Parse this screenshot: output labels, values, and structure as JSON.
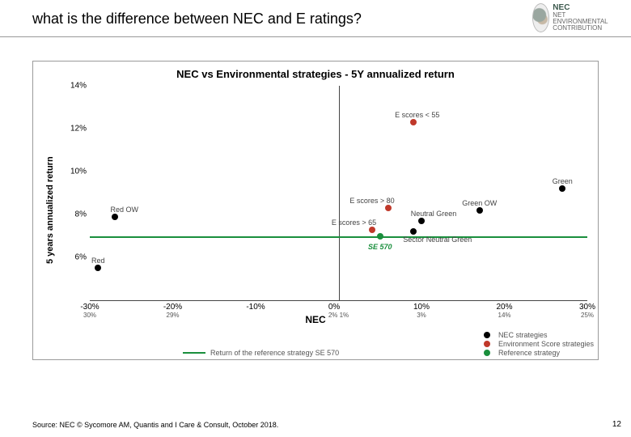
{
  "header": {
    "title": "what is the difference between NEC and E ratings?",
    "logo": {
      "name": "NEC",
      "tagline": "NET ENVIRONMENTAL CONTRIBUTION"
    }
  },
  "chart": {
    "type": "scatter",
    "title": "NEC vs Environmental strategies - 5Y annualized return",
    "x_label": "NEC",
    "y_label": "5 years annualized return",
    "xlim": [
      -30,
      30
    ],
    "ylim": [
      4,
      14
    ],
    "ytick_step": 2,
    "xticks": [
      {
        "v": -30,
        "label": "-30%",
        "sub": "30%"
      },
      {
        "v": -20,
        "label": "-20%",
        "sub": "29%"
      },
      {
        "v": -10,
        "label": "-10%",
        "sub": ""
      },
      {
        "v": 0,
        "label": "0%",
        "sub": "2%  1%"
      },
      {
        "v": 10,
        "label": "10%",
        "sub": "3%"
      },
      {
        "v": 20,
        "label": "20%",
        "sub": "14%"
      },
      {
        "v": 30,
        "label": "30%",
        "sub": "25%"
      }
    ],
    "axis_line_y": 4,
    "reference_return": 7.0,
    "colors": {
      "nec": "#000000",
      "escore": "#c0392b",
      "reference": "#1a8f3d",
      "axis": "#444444",
      "axis_light": "#e0e0e0",
      "ref_line": "#1a8f3d"
    },
    "series": {
      "nec": [
        {
          "x": -29,
          "y": 5.5,
          "label": "Red",
          "label_dx": 0,
          "label_dy": -14
        },
        {
          "x": -27,
          "y": 7.9,
          "label": "Red OW",
          "label_dx": 12,
          "label_dy": -14
        },
        {
          "x": 9,
          "y": 7.2,
          "label": "Sector Neutral Green",
          "label_dx": 30,
          "label_dy": 5
        },
        {
          "x": 10,
          "y": 7.7,
          "label": "Neutral Green",
          "label_dx": 15,
          "label_dy": -14
        },
        {
          "x": 17,
          "y": 8.2,
          "label": "Green OW",
          "label_dx": 0,
          "label_dy": -14
        },
        {
          "x": 27,
          "y": 9.2,
          "label": "Green",
          "label_dx": 0,
          "label_dy": -14
        }
      ],
      "escore": [
        {
          "x": 4,
          "y": 7.3,
          "label": "E scores > 65",
          "label_dx": -22,
          "label_dy": -14
        },
        {
          "x": 6,
          "y": 8.3,
          "label": "E scores > 80",
          "label_dx": -20,
          "label_dy": -14
        },
        {
          "x": 9,
          "y": 12.3,
          "label": "E scores < 55",
          "label_dx": 5,
          "label_dy": -14
        }
      ],
      "reference": [
        {
          "x": 5,
          "y": 7.0,
          "label": "SE 570",
          "label_dx": 0,
          "label_dy": 8,
          "label_class": "green"
        }
      ]
    },
    "legend": {
      "nec": "NEC strategies",
      "escore": "Environment Score strategies",
      "reference": "Reference strategy",
      "ref_line": "Return of the reference strategy SE 570"
    }
  },
  "source": "Source: NEC © Sycomore AM, Quantis and I Care & Consult, October 2018.",
  "page_number": "12"
}
